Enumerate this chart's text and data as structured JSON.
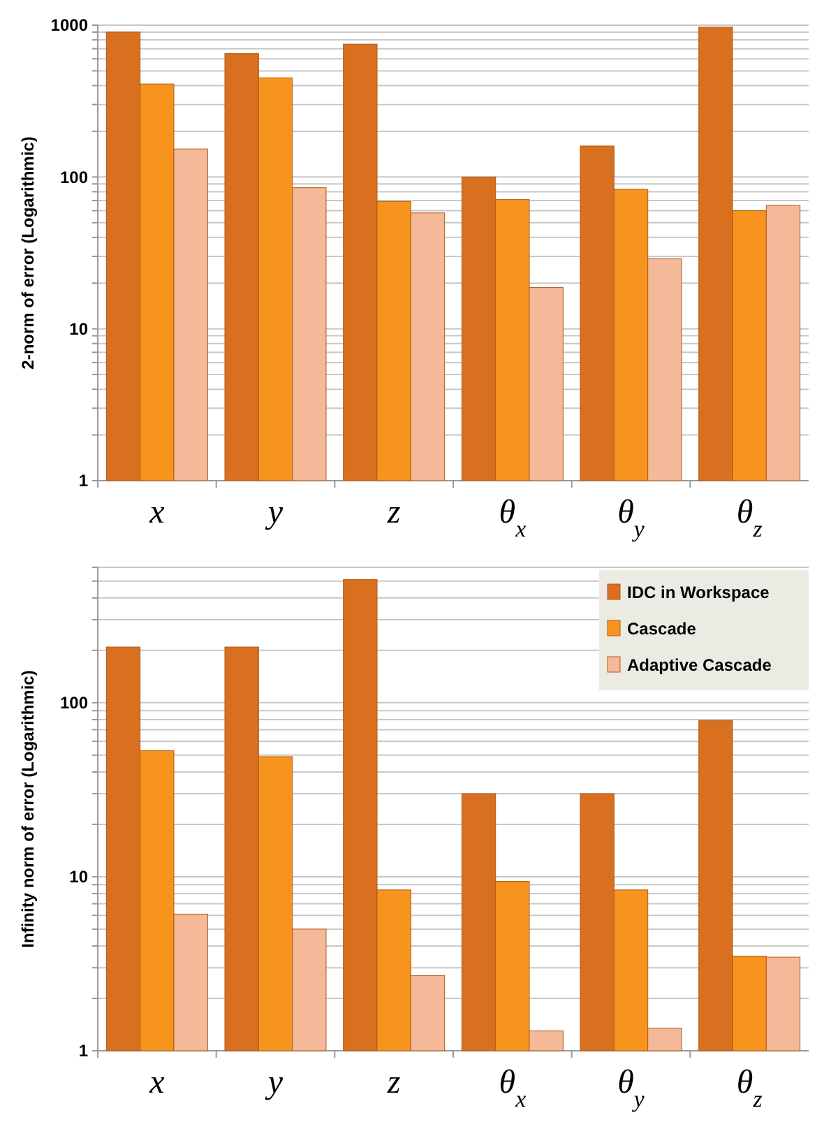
{
  "chart_data": [
    {
      "type": "bar",
      "ylabel": "2-norm of error (Logarithmic)",
      "categories": [
        "x",
        "y",
        "z",
        "θ$_{x}$",
        "θ$_{y}$",
        "θ$_{z}$"
      ],
      "series": [
        {
          "color": "#d8701f",
          "values": [
            900,
            650,
            750,
            100,
            160,
            970
          ]
        },
        {
          "color": "#f7941d",
          "values": [
            410,
            450,
            69,
            71,
            83,
            60
          ]
        },
        {
          "color": "#f4b998",
          "values": [
            153,
            85,
            58,
            18.7,
            29,
            65
          ]
        }
      ],
      "log": "y",
      "ylim": [
        1,
        1000
      ],
      "yticks": [
        1,
        {
          "value": 2,
          "label": null
        },
        {
          "value": 3,
          "label": null
        },
        {
          "value": 4,
          "label": null
        },
        {
          "value": 5,
          "label": null
        },
        {
          "value": 6,
          "label": null
        },
        {
          "value": 7,
          "label": null
        },
        {
          "value": 8,
          "label": null
        },
        {
          "value": 9,
          "label": null
        },
        10,
        {
          "value": 20,
          "label": null
        },
        {
          "value": 30,
          "label": null
        },
        {
          "value": 40,
          "label": null
        },
        {
          "value": 50,
          "label": null
        },
        {
          "value": 60,
          "label": null
        },
        {
          "value": 70,
          "label": null
        },
        {
          "value": 80,
          "label": null
        },
        {
          "value": 90,
          "label": null
        },
        100,
        {
          "value": 200,
          "label": null
        },
        {
          "value": 300,
          "label": null
        },
        {
          "value": 400,
          "label": null
        },
        {
          "value": 500,
          "label": null
        },
        {
          "value": 600,
          "label": null
        },
        {
          "value": 700,
          "label": null
        },
        {
          "value": 800,
          "label": null
        },
        {
          "value": 900,
          "label": null
        },
        1000
      ],
      "grid": "y",
      "legend": false
    },
    {
      "type": "bar",
      "ylabel": "Infinity norm of error (Logarithmic)",
      "categories": [
        "x",
        "y",
        "z",
        "θ$_{x}$",
        "θ$_{y}$",
        "θ$_{z}$"
      ],
      "series": [
        {
          "name": "IDC in Workspace",
          "color": "#d8701f",
          "values": [
            209,
            209,
            510,
            30,
            30,
            79
          ]
        },
        {
          "name": "Cascade",
          "color": "#f7941d",
          "values": [
            53,
            49,
            8.4,
            9.4,
            8.4,
            3.5
          ]
        },
        {
          "name": "Adaptive Cascade",
          "color": "#f4b998",
          "values": [
            6.1,
            5.0,
            2.7,
            1.3,
            1.35,
            3.45
          ]
        }
      ],
      "log": "y",
      "ylim": [
        1,
        600
      ],
      "yticks": [
        1,
        {
          "value": 2,
          "label": null
        },
        {
          "value": 3,
          "label": null
        },
        {
          "value": 4,
          "label": null
        },
        {
          "value": 5,
          "label": null
        },
        {
          "value": 6,
          "label": null
        },
        {
          "value": 7,
          "label": null
        },
        {
          "value": 8,
          "label": null
        },
        {
          "value": 9,
          "label": null
        },
        10,
        {
          "value": 20,
          "label": null
        },
        {
          "value": 30,
          "label": null
        },
        {
          "value": 40,
          "label": null
        },
        {
          "value": 50,
          "label": null
        },
        {
          "value": 60,
          "label": null
        },
        {
          "value": 70,
          "label": null
        },
        {
          "value": 80,
          "label": null
        },
        {
          "value": 90,
          "label": null
        },
        100,
        {
          "value": 200,
          "label": null
        },
        {
          "value": 300,
          "label": null
        },
        {
          "value": 400,
          "label": null
        },
        {
          "value": 500,
          "label": null
        },
        {
          "value": 600,
          "label": null
        }
      ],
      "grid": "y",
      "legend": "top right"
    }
  ]
}
